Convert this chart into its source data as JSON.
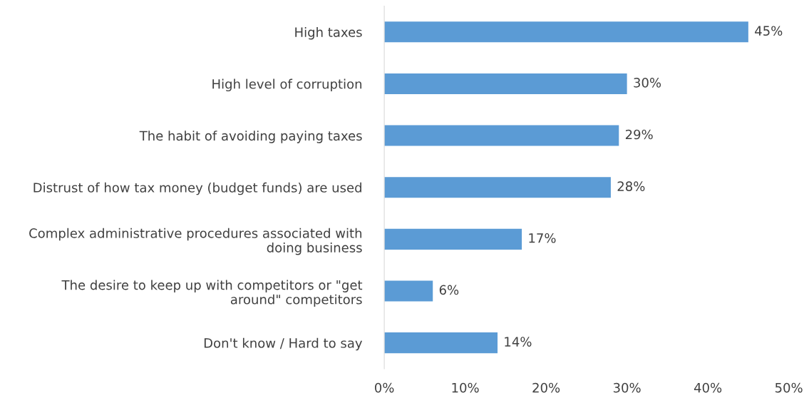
{
  "chart_data": {
    "type": "bar",
    "orientation": "horizontal",
    "categories": [
      "High taxes",
      "High level of corruption",
      "The habit of avoiding paying taxes",
      "Distrust of how tax money (budget funds) are used",
      "Complex administrative procedures associated with\ndoing business",
      "The desire to keep up with competitors or \"get\naround\" competitors",
      "Don't know / Hard to say"
    ],
    "values": [
      45,
      30,
      29,
      28,
      17,
      6,
      14
    ],
    "value_labels": [
      "45%",
      "30%",
      "29%",
      "28%",
      "17%",
      "6%",
      "14%"
    ],
    "color": "#5b9bd5",
    "xlim": [
      0,
      50
    ],
    "xticks": [
      {
        "value": 0,
        "label": "0%"
      },
      {
        "value": 10,
        "label": "10%"
      },
      {
        "value": 20,
        "label": "20%"
      },
      {
        "value": 30,
        "label": "30%"
      },
      {
        "value": 40,
        "label": "40%"
      },
      {
        "value": 50,
        "label": "50%"
      }
    ],
    "grid": false,
    "legend": false
  }
}
